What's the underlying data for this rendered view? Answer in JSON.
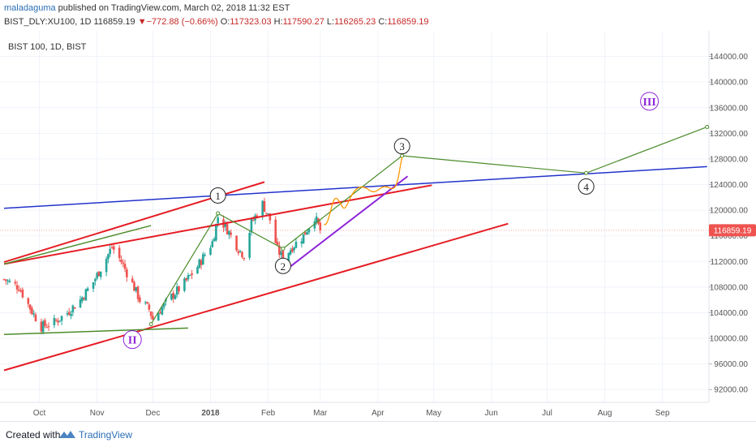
{
  "header": {
    "author": "maladaguma",
    "published_text": " published on TradingView.com, March 02, 2018 11:32 EST",
    "symbol_line": "BIST_DLY:XU100, 1D",
    "last_price": "116859.19",
    "change": "−772.88 (−0.66%)",
    "ohlc": {
      "o_label": "O:",
      "o": "117323.03",
      "h_label": "H:",
      "h": "117590.27",
      "l_label": "L:",
      "l": "116265.23",
      "c_label": "C:",
      "c": "116859.19"
    }
  },
  "legend": {
    "text": "BIST 100, 1D, BIST"
  },
  "footer": {
    "created_with": "Created with",
    "brand": "TradingView"
  },
  "colors": {
    "up": "#26a69a",
    "down": "#ef5350",
    "blue_line": "#2233cc",
    "red_line": "#e51c23",
    "green_line": "#4c8c2b",
    "purple_line": "#8e24d8",
    "orange_path": "#ff9800",
    "price_badge": "#ef5350"
  },
  "chart_data": {
    "type": "candlestick",
    "x_axis": {
      "ticks": [
        "Oct",
        "Nov",
        "Dec",
        "2018",
        "Feb",
        "Mar",
        "Apr",
        "May",
        "Jun",
        "Jul",
        "Aug",
        "Sep"
      ]
    },
    "y_axis": {
      "range": [
        90000,
        148000
      ],
      "ticks": [
        "92000.00",
        "96000.00",
        "100000.00",
        "104000.00",
        "108000.00",
        "112000.00",
        "116000.00",
        "120000.00",
        "124000.00",
        "128000.00",
        "132000.00",
        "136000.00",
        "140000.00",
        "144000.00"
      ]
    },
    "current_price": "116859.19",
    "close_series": [
      {
        "date": "2017-09-12",
        "close": 109200
      },
      {
        "date": "2017-09-20",
        "close": 108000
      },
      {
        "date": "2017-09-27",
        "close": 104200
      },
      {
        "date": "2017-10-02",
        "close": 101800
      },
      {
        "date": "2017-10-09",
        "close": 102500
      },
      {
        "date": "2017-10-16",
        "close": 104000
      },
      {
        "date": "2017-10-23",
        "close": 106000
      },
      {
        "date": "2017-10-30",
        "close": 108800
      },
      {
        "date": "2017-11-06",
        "close": 112500
      },
      {
        "date": "2017-11-09",
        "close": 114300
      },
      {
        "date": "2017-11-14",
        "close": 112000
      },
      {
        "date": "2017-11-20",
        "close": 108500
      },
      {
        "date": "2017-11-24",
        "close": 106000
      },
      {
        "date": "2017-11-29",
        "close": 104500
      },
      {
        "date": "2017-12-01",
        "close": 103000
      },
      {
        "date": "2017-12-06",
        "close": 104800
      },
      {
        "date": "2017-12-12",
        "close": 106800
      },
      {
        "date": "2017-12-18",
        "close": 108600
      },
      {
        "date": "2017-12-25",
        "close": 111200
      },
      {
        "date": "2018-01-02",
        "close": 115000
      },
      {
        "date": "2018-01-05",
        "close": 119000
      },
      {
        "date": "2018-01-10",
        "close": 117000
      },
      {
        "date": "2018-01-16",
        "close": 114000
      },
      {
        "date": "2018-01-19",
        "close": 113000
      },
      {
        "date": "2018-01-23",
        "close": 118000
      },
      {
        "date": "2018-01-29",
        "close": 121000
      },
      {
        "date": "2018-02-02",
        "close": 118500
      },
      {
        "date": "2018-02-06",
        "close": 113800
      },
      {
        "date": "2018-02-09",
        "close": 112500
      },
      {
        "date": "2018-02-14",
        "close": 114300
      },
      {
        "date": "2018-02-20",
        "close": 116000
      },
      {
        "date": "2018-02-26",
        "close": 119000
      },
      {
        "date": "2018-03-01",
        "close": 116859
      }
    ],
    "annotations": {
      "wave_labels": [
        {
          "label": "1",
          "date": "2018-01-05",
          "value": 122300
        },
        {
          "label": "2",
          "date": "2018-02-09",
          "value": 111300
        },
        {
          "label": "3",
          "date": "2018-04-14",
          "value": 130000
        },
        {
          "label": "4",
          "date": "2018-07-22",
          "value": 123700
        },
        {
          "label": "II",
          "date": "2017-11-20",
          "value": 99800
        },
        {
          "label": "III",
          "date": "2018-08-25",
          "value": 137000
        }
      ],
      "wave_path": [
        {
          "date": "2017-11-30",
          "value": 102200
        },
        {
          "date": "2018-01-05",
          "value": 119500
        },
        {
          "date": "2018-02-09",
          "value": 114000
        },
        {
          "date": "2018-04-14",
          "value": 128500
        },
        {
          "date": "2018-07-22",
          "value": 125800
        },
        {
          "date": "2018-09-25",
          "value": 133000
        }
      ],
      "trendlines": {
        "blue": [
          {
            "date": "2017-09-12",
            "value": 120300
          },
          {
            "date": "2018-09-25",
            "value": 126800
          }
        ],
        "red_upper": [
          {
            "date": "2017-09-12",
            "value": 111900
          },
          {
            "date": "2018-01-30",
            "value": 124400
          }
        ],
        "red_mid": [
          {
            "date": "2017-09-12",
            "value": 111600
          },
          {
            "date": "2018-04-30",
            "value": 123900
          }
        ],
        "red_lower": [
          {
            "date": "2017-09-12",
            "value": 95000
          },
          {
            "date": "2018-06-10",
            "value": 117900
          }
        ],
        "purple": [
          {
            "date": "2018-02-12",
            "value": 111000
          },
          {
            "date": "2018-04-17",
            "value": 125300
          }
        ],
        "green_upper": [
          {
            "date": "2017-09-12",
            "value": 111600
          },
          {
            "date": "2017-11-30",
            "value": 117600
          }
        ],
        "green_lower": [
          {
            "date": "2017-09-12",
            "value": 100600
          },
          {
            "date": "2017-12-20",
            "value": 101600
          }
        ]
      }
    }
  }
}
